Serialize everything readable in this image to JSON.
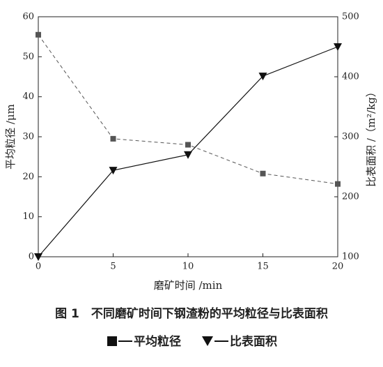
{
  "chart_data": {
    "type": "line",
    "caption": "图 1　不同磨矿时间下钢渣粉的平均粒径与比表面积",
    "x_label": "磨矿时间 /min",
    "y_label": "平均粒径 /μm",
    "y2_label": "比表面积 /（m²/kg）",
    "x": [
      0,
      5,
      10,
      15,
      20
    ],
    "xlim": [
      0,
      20
    ],
    "xticks": [
      0,
      5,
      10,
      15,
      20
    ],
    "ylim": [
      0,
      60
    ],
    "yticks": [
      0,
      10,
      20,
      30,
      40,
      50,
      60
    ],
    "y2lim": [
      100,
      500
    ],
    "y2ticks": [
      100,
      200,
      300,
      400,
      500
    ],
    "series": [
      {
        "name": "平均粒径",
        "color": "#555555",
        "marker": "square",
        "dash": true,
        "values": [
          55.5,
          29.5,
          28,
          20.8,
          18.2
        ]
      },
      {
        "name": "比表面积",
        "color": "#111111",
        "marker": "triangle",
        "dash": false,
        "axis": "y2",
        "values": [
          100,
          244,
          270,
          401,
          450
        ]
      }
    ]
  }
}
